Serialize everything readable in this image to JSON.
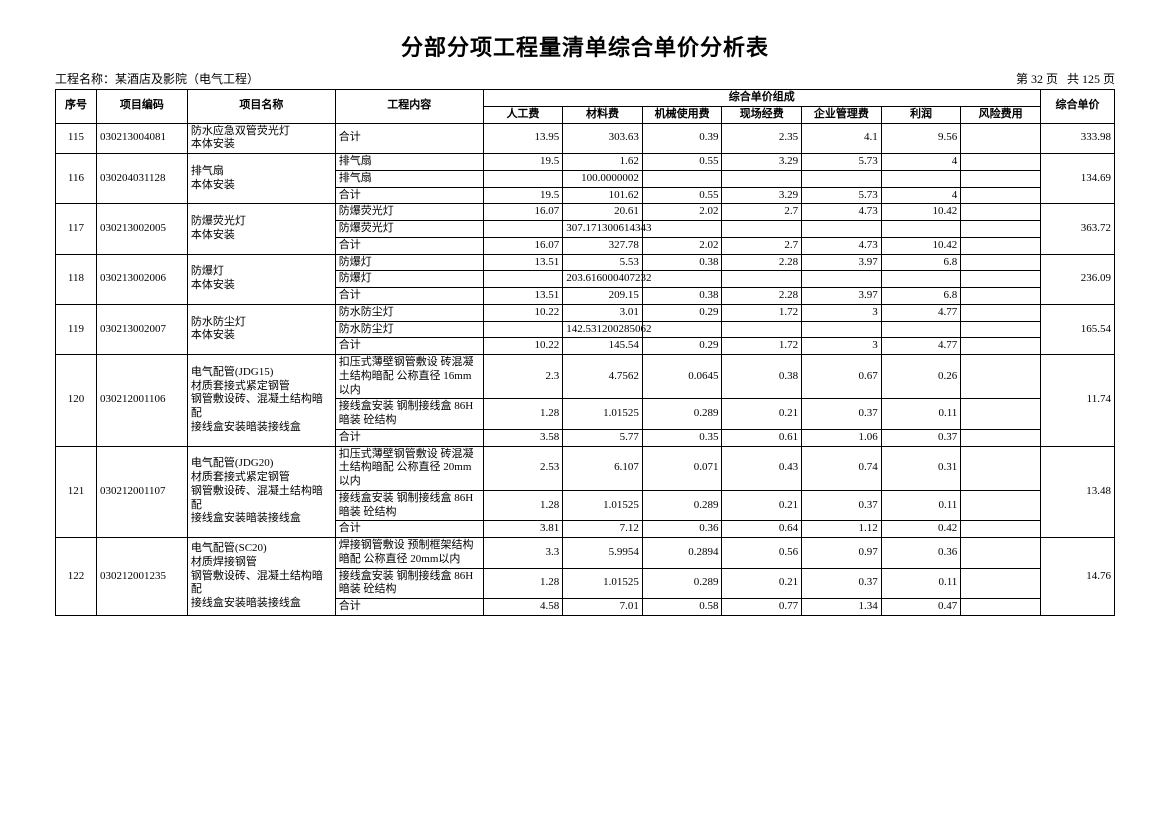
{
  "title": "分部分项工程量清单综合单价分析表",
  "project_label": "工程名称：",
  "project_name": "某酒店及影院（电气工程）",
  "page_info_left": "第 32 页",
  "page_info_right": "共 125 页",
  "headers": {
    "seq": "序号",
    "code": "项目编码",
    "name": "项目名称",
    "content": "工程内容",
    "composite": "综合单价组成",
    "labor": "人工费",
    "material": "材料费",
    "machine": "机械使用费",
    "site": "现场经费",
    "manage": "企业管理费",
    "profit": "利润",
    "risk": "风险费用",
    "unit_price": "综合单价"
  },
  "rows": [
    {
      "seq": "115",
      "code": "030213004081",
      "name": "防水应急双管荧光灯\n本体安装",
      "detail": [
        {
          "content": "合计",
          "labor": "13.95",
          "material": "303.63",
          "machine": "0.39",
          "site": "2.35",
          "manage": "4.1",
          "profit": "9.56",
          "risk": ""
        }
      ],
      "price": "333.98"
    },
    {
      "seq": "116",
      "code": "030204031128",
      "name": "排气扇\n本体安装",
      "detail": [
        {
          "content": "排气扇",
          "labor": "19.5",
          "material": "1.62",
          "machine": "0.55",
          "site": "3.29",
          "manage": "5.73",
          "profit": "4",
          "risk": ""
        },
        {
          "content": "排气扇",
          "labor": "",
          "material": "100.0000002",
          "machine": "",
          "site": "",
          "manage": "",
          "profit": "",
          "risk": ""
        },
        {
          "content": "合计",
          "labor": "19.5",
          "material": "101.62",
          "machine": "0.55",
          "site": "3.29",
          "manage": "5.73",
          "profit": "4",
          "risk": ""
        }
      ],
      "price": "134.69"
    },
    {
      "seq": "117",
      "code": "030213002005",
      "name": "防爆荧光灯\n本体安装",
      "detail": [
        {
          "content": "防爆荧光灯",
          "labor": "16.07",
          "material": "20.61",
          "machine": "2.02",
          "site": "2.7",
          "manage": "4.73",
          "profit": "10.42",
          "risk": ""
        },
        {
          "content": "防爆荧光灯",
          "labor": "",
          "material": "307.171300614343",
          "machine": "",
          "site": "",
          "manage": "",
          "profit": "",
          "risk": ""
        },
        {
          "content": "合计",
          "labor": "16.07",
          "material": "327.78",
          "machine": "2.02",
          "site": "2.7",
          "manage": "4.73",
          "profit": "10.42",
          "risk": ""
        }
      ],
      "price": "363.72"
    },
    {
      "seq": "118",
      "code": "030213002006",
      "name": "防爆灯\n本体安装",
      "detail": [
        {
          "content": "防爆灯",
          "labor": "13.51",
          "material": "5.53",
          "machine": "0.38",
          "site": "2.28",
          "manage": "3.97",
          "profit": "6.8",
          "risk": ""
        },
        {
          "content": "防爆灯",
          "labor": "",
          "material": "203.616000407232",
          "machine": "",
          "site": "",
          "manage": "",
          "profit": "",
          "risk": ""
        },
        {
          "content": "合计",
          "labor": "13.51",
          "material": "209.15",
          "machine": "0.38",
          "site": "2.28",
          "manage": "3.97",
          "profit": "6.8",
          "risk": ""
        }
      ],
      "price": "236.09"
    },
    {
      "seq": "119",
      "code": "030213002007",
      "name": "防水防尘灯\n本体安装",
      "detail": [
        {
          "content": "防水防尘灯",
          "labor": "10.22",
          "material": "3.01",
          "machine": "0.29",
          "site": "1.72",
          "manage": "3",
          "profit": "4.77",
          "risk": ""
        },
        {
          "content": "防水防尘灯",
          "labor": "",
          "material": "142.531200285062",
          "machine": "",
          "site": "",
          "manage": "",
          "profit": "",
          "risk": ""
        },
        {
          "content": "合计",
          "labor": "10.22",
          "material": "145.54",
          "machine": "0.29",
          "site": "1.72",
          "manage": "3",
          "profit": "4.77",
          "risk": ""
        }
      ],
      "price": "165.54"
    },
    {
      "seq": "120",
      "code": "030212001106",
      "name": "电气配管(JDG15)\n材质套接式紧定钢管\n钢管敷设砖、混凝土结构暗配\n接线盒安装暗装接线盒",
      "detail": [
        {
          "content": "扣压式薄壁钢管敷设 砖混凝土结构暗配 公称直径 16mm以内",
          "labor": "2.3",
          "material": "4.7562",
          "machine": "0.0645",
          "site": "0.38",
          "manage": "0.67",
          "profit": "0.26",
          "risk": ""
        },
        {
          "content": "接线盒安装 钢制接线盒 86H 暗装 砼结构",
          "labor": "1.28",
          "material": "1.01525",
          "machine": "0.289",
          "site": "0.21",
          "manage": "0.37",
          "profit": "0.11",
          "risk": ""
        },
        {
          "content": "合计",
          "labor": "3.58",
          "material": "5.77",
          "machine": "0.35",
          "site": "0.61",
          "manage": "1.06",
          "profit": "0.37",
          "risk": ""
        }
      ],
      "price": "11.74"
    },
    {
      "seq": "121",
      "code": "030212001107",
      "name": "电气配管(JDG20)\n材质套接式紧定钢管\n钢管敷设砖、混凝土结构暗配\n接线盒安装暗装接线盒",
      "detail": [
        {
          "content": "扣压式薄壁钢管敷设 砖混凝土结构暗配 公称直径 20mm以内",
          "labor": "2.53",
          "material": "6.107",
          "machine": "0.071",
          "site": "0.43",
          "manage": "0.74",
          "profit": "0.31",
          "risk": ""
        },
        {
          "content": "接线盒安装 钢制接线盒 86H 暗装 砼结构",
          "labor": "1.28",
          "material": "1.01525",
          "machine": "0.289",
          "site": "0.21",
          "manage": "0.37",
          "profit": "0.11",
          "risk": ""
        },
        {
          "content": "合计",
          "labor": "3.81",
          "material": "7.12",
          "machine": "0.36",
          "site": "0.64",
          "manage": "1.12",
          "profit": "0.42",
          "risk": ""
        }
      ],
      "price": "13.48"
    },
    {
      "seq": "122",
      "code": "030212001235",
      "name": "电气配管(SC20)\n材质焊接钢管\n钢管敷设砖、混凝土结构暗配\n接线盒安装暗装接线盒",
      "detail": [
        {
          "content": "焊接钢管敷设 预制框架结构暗配 公称直径 20mm以内",
          "labor": "3.3",
          "material": "5.9954",
          "machine": "0.2894",
          "site": "0.56",
          "manage": "0.97",
          "profit": "0.36",
          "risk": ""
        },
        {
          "content": "接线盒安装 钢制接线盒 86H 暗装 砼结构",
          "labor": "1.28",
          "material": "1.01525",
          "machine": "0.289",
          "site": "0.21",
          "manage": "0.37",
          "profit": "0.11",
          "risk": ""
        },
        {
          "content": "合计",
          "labor": "4.58",
          "material": "7.01",
          "machine": "0.58",
          "site": "0.77",
          "manage": "1.34",
          "profit": "0.47",
          "risk": ""
        }
      ],
      "price": "14.76"
    }
  ]
}
